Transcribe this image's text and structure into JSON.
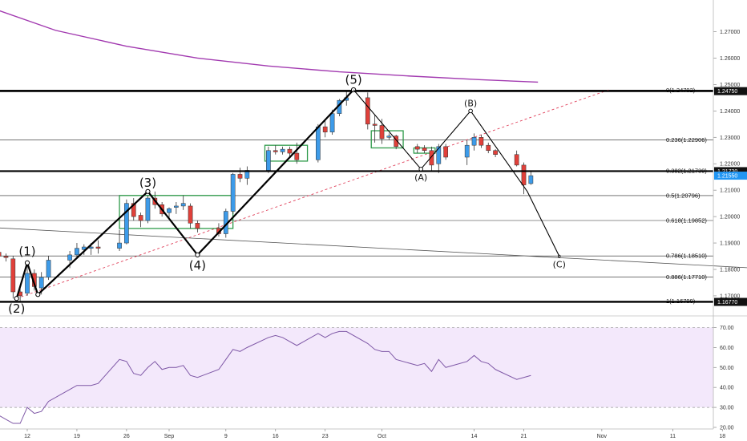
{
  "chart_data": {
    "type": "candlestick",
    "price_panel": {
      "y_axis": {
        "min": 1.163,
        "max": 1.282,
        "ticks": [
          "1.27000",
          "1.26000",
          "1.25000",
          "1.24000",
          "1.23000",
          "1.22000",
          "1.21000",
          "1.20000",
          "1.19000",
          "1.18000",
          "1.17000"
        ]
      },
      "x_axis": {
        "labels": [
          {
            "label": "12",
            "day": 0
          },
          {
            "label": "19",
            "day": 7
          },
          {
            "label": "26",
            "day": 14
          },
          {
            "label": "Sep",
            "day": 20
          },
          {
            "label": "9",
            "day": 28
          },
          {
            "label": "16",
            "day": 35
          },
          {
            "label": "23",
            "day": 42
          },
          {
            "label": "Oct",
            "day": 50
          },
          {
            "label": "14",
            "day": 63
          },
          {
            "label": "21",
            "day": 70
          },
          {
            "label": "Nov",
            "day": 81
          },
          {
            "label": "11",
            "day": 91
          },
          {
            "label": "18",
            "day": 98
          }
        ]
      },
      "candles": [
        {
          "day": -4,
          "o": 1.1865,
          "h": 1.1875,
          "l": 1.184,
          "c": 1.185
        },
        {
          "day": -3,
          "o": 1.185,
          "h": 1.186,
          "l": 1.183,
          "c": 1.1845
        },
        {
          "day": -2,
          "o": 1.184,
          "h": 1.185,
          "l": 1.169,
          "c": 1.1715
        },
        {
          "day": -1,
          "o": 1.1715,
          "h": 1.174,
          "l": 1.168,
          "c": 1.17
        },
        {
          "day": 0,
          "o": 1.171,
          "h": 1.182,
          "l": 1.17,
          "c": 1.1785
        },
        {
          "day": 1,
          "o": 1.1785,
          "h": 1.18,
          "l": 1.172,
          "c": 1.1735
        },
        {
          "day": 2,
          "o": 1.173,
          "h": 1.179,
          "l": 1.1705,
          "c": 1.177
        },
        {
          "day": 3,
          "o": 1.177,
          "h": 1.185,
          "l": 1.176,
          "c": 1.1835
        },
        {
          "day": 6,
          "o": 1.1835,
          "h": 1.187,
          "l": 1.1805,
          "c": 1.1855
        },
        {
          "day": 7,
          "o": 1.1855,
          "h": 1.19,
          "l": 1.184,
          "c": 1.188
        },
        {
          "day": 8,
          "o": 1.1875,
          "h": 1.1895,
          "l": 1.1855,
          "c": 1.1885
        },
        {
          "day": 9,
          "o": 1.188,
          "h": 1.19,
          "l": 1.1855,
          "c": 1.1885
        },
        {
          "day": 10,
          "o": 1.1885,
          "h": 1.191,
          "l": 1.186,
          "c": 1.188
        },
        {
          "day": 13,
          "o": 1.188,
          "h": 1.195,
          "l": 1.187,
          "c": 1.19
        },
        {
          "day": 14,
          "o": 1.19,
          "h": 1.2065,
          "l": 1.1895,
          "c": 1.205
        },
        {
          "day": 15,
          "o": 1.205,
          "h": 1.207,
          "l": 1.1985,
          "c": 1.2
        },
        {
          "day": 16,
          "o": 1.2005,
          "h": 1.2015,
          "l": 1.196,
          "c": 1.1985
        },
        {
          "day": 17,
          "o": 1.1985,
          "h": 1.208,
          "l": 1.1975,
          "c": 1.207
        },
        {
          "day": 18,
          "o": 1.207,
          "h": 1.2095,
          "l": 1.203,
          "c": 1.2045
        },
        {
          "day": 19,
          "o": 1.2045,
          "h": 1.2055,
          "l": 1.2,
          "c": 1.201
        },
        {
          "day": 20,
          "o": 1.2015,
          "h": 1.2035,
          "l": 1.1995,
          "c": 1.203
        },
        {
          "day": 21,
          "o": 1.2035,
          "h": 1.2055,
          "l": 1.201,
          "c": 1.204
        },
        {
          "day": 22,
          "o": 1.204,
          "h": 1.208,
          "l": 1.2025,
          "c": 1.205
        },
        {
          "day": 23,
          "o": 1.204,
          "h": 1.205,
          "l": 1.1955,
          "c": 1.1975
        },
        {
          "day": 24,
          "o": 1.1975,
          "h": 1.1985,
          "l": 1.194,
          "c": 1.1955
        },
        {
          "day": 27,
          "o": 1.1955,
          "h": 1.1975,
          "l": 1.1925,
          "c": 1.1935
        },
        {
          "day": 28,
          "o": 1.1935,
          "h": 1.203,
          "l": 1.192,
          "c": 1.202
        },
        {
          "day": 29,
          "o": 1.202,
          "h": 1.2165,
          "l": 1.201,
          "c": 1.216
        },
        {
          "day": 30,
          "o": 1.216,
          "h": 1.2185,
          "l": 1.213,
          "c": 1.2145
        },
        {
          "day": 31,
          "o": 1.2145,
          "h": 1.219,
          "l": 1.212,
          "c": 1.2175
        },
        {
          "day": 34,
          "o": 1.2175,
          "h": 1.2265,
          "l": 1.2165,
          "c": 1.225
        },
        {
          "day": 35,
          "o": 1.225,
          "h": 1.227,
          "l": 1.2235,
          "c": 1.2245
        },
        {
          "day": 36,
          "o": 1.2245,
          "h": 1.2265,
          "l": 1.2235,
          "c": 1.2255
        },
        {
          "day": 37,
          "o": 1.2255,
          "h": 1.2265,
          "l": 1.2225,
          "c": 1.224
        },
        {
          "day": 38,
          "o": 1.224,
          "h": 1.228,
          "l": 1.22,
          "c": 1.2215
        },
        {
          "day": 41,
          "o": 1.2215,
          "h": 1.235,
          "l": 1.2205,
          "c": 1.234
        },
        {
          "day": 42,
          "o": 1.234,
          "h": 1.2365,
          "l": 1.23,
          "c": 1.232
        },
        {
          "day": 43,
          "o": 1.232,
          "h": 1.2405,
          "l": 1.231,
          "c": 1.239
        },
        {
          "day": 44,
          "o": 1.239,
          "h": 1.2445,
          "l": 1.238,
          "c": 1.244
        },
        {
          "day": 45,
          "o": 1.244,
          "h": 1.248,
          "l": 1.242,
          "c": 1.245
        },
        {
          "day": 48,
          "o": 1.245,
          "h": 1.247,
          "l": 1.233,
          "c": 1.235
        },
        {
          "day": 49,
          "o": 1.235,
          "h": 1.2385,
          "l": 1.228,
          "c": 1.2345
        },
        {
          "day": 50,
          "o": 1.2345,
          "h": 1.237,
          "l": 1.2275,
          "c": 1.2295
        },
        {
          "day": 51,
          "o": 1.23,
          "h": 1.2315,
          "l": 1.229,
          "c": 1.2305
        },
        {
          "day": 52,
          "o": 1.2305,
          "h": 1.231,
          "l": 1.2255,
          "c": 1.2265
        },
        {
          "day": 55,
          "o": 1.2265,
          "h": 1.2275,
          "l": 1.224,
          "c": 1.2255
        },
        {
          "day": 56,
          "o": 1.226,
          "h": 1.227,
          "l": 1.224,
          "c": 1.225
        },
        {
          "day": 57,
          "o": 1.225,
          "h": 1.2265,
          "l": 1.2175,
          "c": 1.2195
        },
        {
          "day": 58,
          "o": 1.22,
          "h": 1.2275,
          "l": 1.2165,
          "c": 1.2265
        },
        {
          "day": 59,
          "o": 1.2265,
          "h": 1.2275,
          "l": 1.2215,
          "c": 1.2225
        },
        {
          "day": 62,
          "o": 1.2225,
          "h": 1.229,
          "l": 1.2195,
          "c": 1.227
        },
        {
          "day": 63,
          "o": 1.227,
          "h": 1.2315,
          "l": 1.225,
          "c": 1.23
        },
        {
          "day": 64,
          "o": 1.23,
          "h": 1.231,
          "l": 1.226,
          "c": 1.227
        },
        {
          "day": 65,
          "o": 1.227,
          "h": 1.228,
          "l": 1.224,
          "c": 1.225
        },
        {
          "day": 66,
          "o": 1.225,
          "h": 1.2255,
          "l": 1.2225,
          "c": 1.2235
        },
        {
          "day": 69,
          "o": 1.2235,
          "h": 1.225,
          "l": 1.219,
          "c": 1.2195
        },
        {
          "day": 70,
          "o": 1.2195,
          "h": 1.2205,
          "l": 1.2085,
          "c": 1.212
        },
        {
          "day": 71,
          "o": 1.2125,
          "h": 1.2175,
          "l": 1.212,
          "c": 1.2155
        }
      ],
      "moving_average": {
        "color": "#a23ab0",
        "points": [
          [
            -4,
            1.278
          ],
          [
            4,
            1.2705
          ],
          [
            14,
            1.2645
          ],
          [
            24,
            1.26
          ],
          [
            34,
            1.257
          ],
          [
            44,
            1.2548
          ],
          [
            54,
            1.2532
          ],
          [
            64,
            1.2518
          ],
          [
            72,
            1.2509
          ]
        ]
      },
      "horizontal_levels": [
        {
          "price": 1.2475,
          "tag": "1.24750"
        },
        {
          "price": 1.2172,
          "tag": "1.21720"
        },
        {
          "price": 1.1677,
          "tag": "1.16770"
        }
      ],
      "fib_levels": [
        {
          "label": "0(1.24792)",
          "price": 1.24792
        },
        {
          "label": "0.236(1.22906)",
          "price": 1.22906
        },
        {
          "label": "0.382(1.21739)",
          "price": 1.21739
        },
        {
          "label": "0.5(1.20796)",
          "price": 1.20796
        },
        {
          "label": "0.618(1.19852)",
          "price": 1.19852
        },
        {
          "label": "0.786(1.18510)",
          "price": 1.1851
        },
        {
          "label": "0.886(1.17710)",
          "price": 1.1771
        },
        {
          "label": "1(1.16799)",
          "price": 1.16799
        }
      ],
      "last_price": {
        "price": 1.2155,
        "tag": "1.21550",
        "color": "#2196f3"
      },
      "wave_labels": [
        {
          "text": "(1)",
          "day": 0,
          "price": 1.1835,
          "pos": "above"
        },
        {
          "text": "(2)",
          "day": -1.5,
          "price": 1.169,
          "pos": "below"
        },
        {
          "text": "(3)",
          "day": 17,
          "price": 1.2095,
          "pos": "above"
        },
        {
          "text": "(4)",
          "day": 24,
          "price": 1.1855,
          "pos": "below"
        },
        {
          "text": "(5)",
          "day": 46,
          "price": 1.2485,
          "pos": "above"
        },
        {
          "text": "(A)",
          "day": 55.5,
          "price": 1.218,
          "pos": "below"
        },
        {
          "text": "(B)",
          "day": 62.5,
          "price": 1.24,
          "pos": "above"
        },
        {
          "text": "(C)",
          "day": 75,
          "price": 1.185,
          "pos": "below"
        }
      ],
      "wave_path": [
        [
          -1.5,
          1.169
        ],
        [
          0,
          1.1825
        ],
        [
          1.5,
          1.1705
        ],
        [
          17,
          1.2095
        ],
        [
          24,
          1.1855
        ],
        [
          46,
          1.248
        ]
      ],
      "correction_path": [
        [
          46,
          1.248
        ],
        [
          55.5,
          1.218
        ],
        [
          62.5,
          1.24
        ],
        [
          70.5,
          1.2095
        ],
        [
          75,
          1.185
        ]
      ],
      "channel_line": {
        "from": [
          -1.5,
          1.169
        ],
        "to": [
          82,
          1.248
        ]
      },
      "long_trend_line": {
        "from": [
          -6,
          1.196
        ],
        "to": [
          106,
          1.18
        ]
      },
      "boxes": [
        {
          "from_day": 13,
          "to_day": 29,
          "top": 1.208,
          "bottom": 1.1955
        },
        {
          "from_day": 33.5,
          "to_day": 39.5,
          "top": 1.227,
          "bottom": 1.221
        },
        {
          "from_day": 48.5,
          "to_day": 53,
          "top": 1.2325,
          "bottom": 1.226
        },
        {
          "from_day": 54.5,
          "to_day": 57.5,
          "top": 1.226,
          "bottom": 1.224
        }
      ]
    },
    "rsi_panel": {
      "y_axis": {
        "min": 20,
        "max": 75,
        "ticks": [
          "70.00",
          "60.00",
          "50.00",
          "40.00",
          "30.00",
          "20.00"
        ]
      },
      "bands": [
        30,
        70
      ],
      "values": [
        [
          -4,
          26
        ],
        [
          -3,
          24
        ],
        [
          -2,
          22
        ],
        [
          -1,
          22
        ],
        [
          0,
          30
        ],
        [
          1,
          27
        ],
        [
          2,
          28
        ],
        [
          3,
          33
        ],
        [
          6,
          39
        ],
        [
          7,
          41
        ],
        [
          8,
          41
        ],
        [
          9,
          41
        ],
        [
          10,
          42
        ],
        [
          13,
          54
        ],
        [
          14,
          53
        ],
        [
          15,
          47
        ],
        [
          16,
          46
        ],
        [
          17,
          50
        ],
        [
          18,
          53
        ],
        [
          19,
          49
        ],
        [
          20,
          50
        ],
        [
          21,
          50
        ],
        [
          22,
          51
        ],
        [
          23,
          46
        ],
        [
          24,
          45
        ],
        [
          27,
          49
        ],
        [
          28,
          54
        ],
        [
          29,
          59
        ],
        [
          30,
          58
        ],
        [
          31,
          60
        ],
        [
          34,
          65
        ],
        [
          35,
          66
        ],
        [
          36,
          65
        ],
        [
          37,
          63
        ],
        [
          38,
          61
        ],
        [
          41,
          67
        ],
        [
          42,
          65
        ],
        [
          43,
          67
        ],
        [
          44,
          68
        ],
        [
          45,
          68
        ],
        [
          48,
          62
        ],
        [
          49,
          59
        ],
        [
          50,
          58
        ],
        [
          51,
          58
        ],
        [
          52,
          54
        ],
        [
          55,
          51
        ],
        [
          56,
          52
        ],
        [
          57,
          48
        ],
        [
          58,
          54
        ],
        [
          59,
          50
        ],
        [
          62,
          53
        ],
        [
          63,
          56
        ],
        [
          64,
          53
        ],
        [
          65,
          52
        ],
        [
          66,
          49
        ],
        [
          69,
          44
        ],
        [
          70,
          45
        ],
        [
          71,
          46
        ]
      ]
    }
  }
}
